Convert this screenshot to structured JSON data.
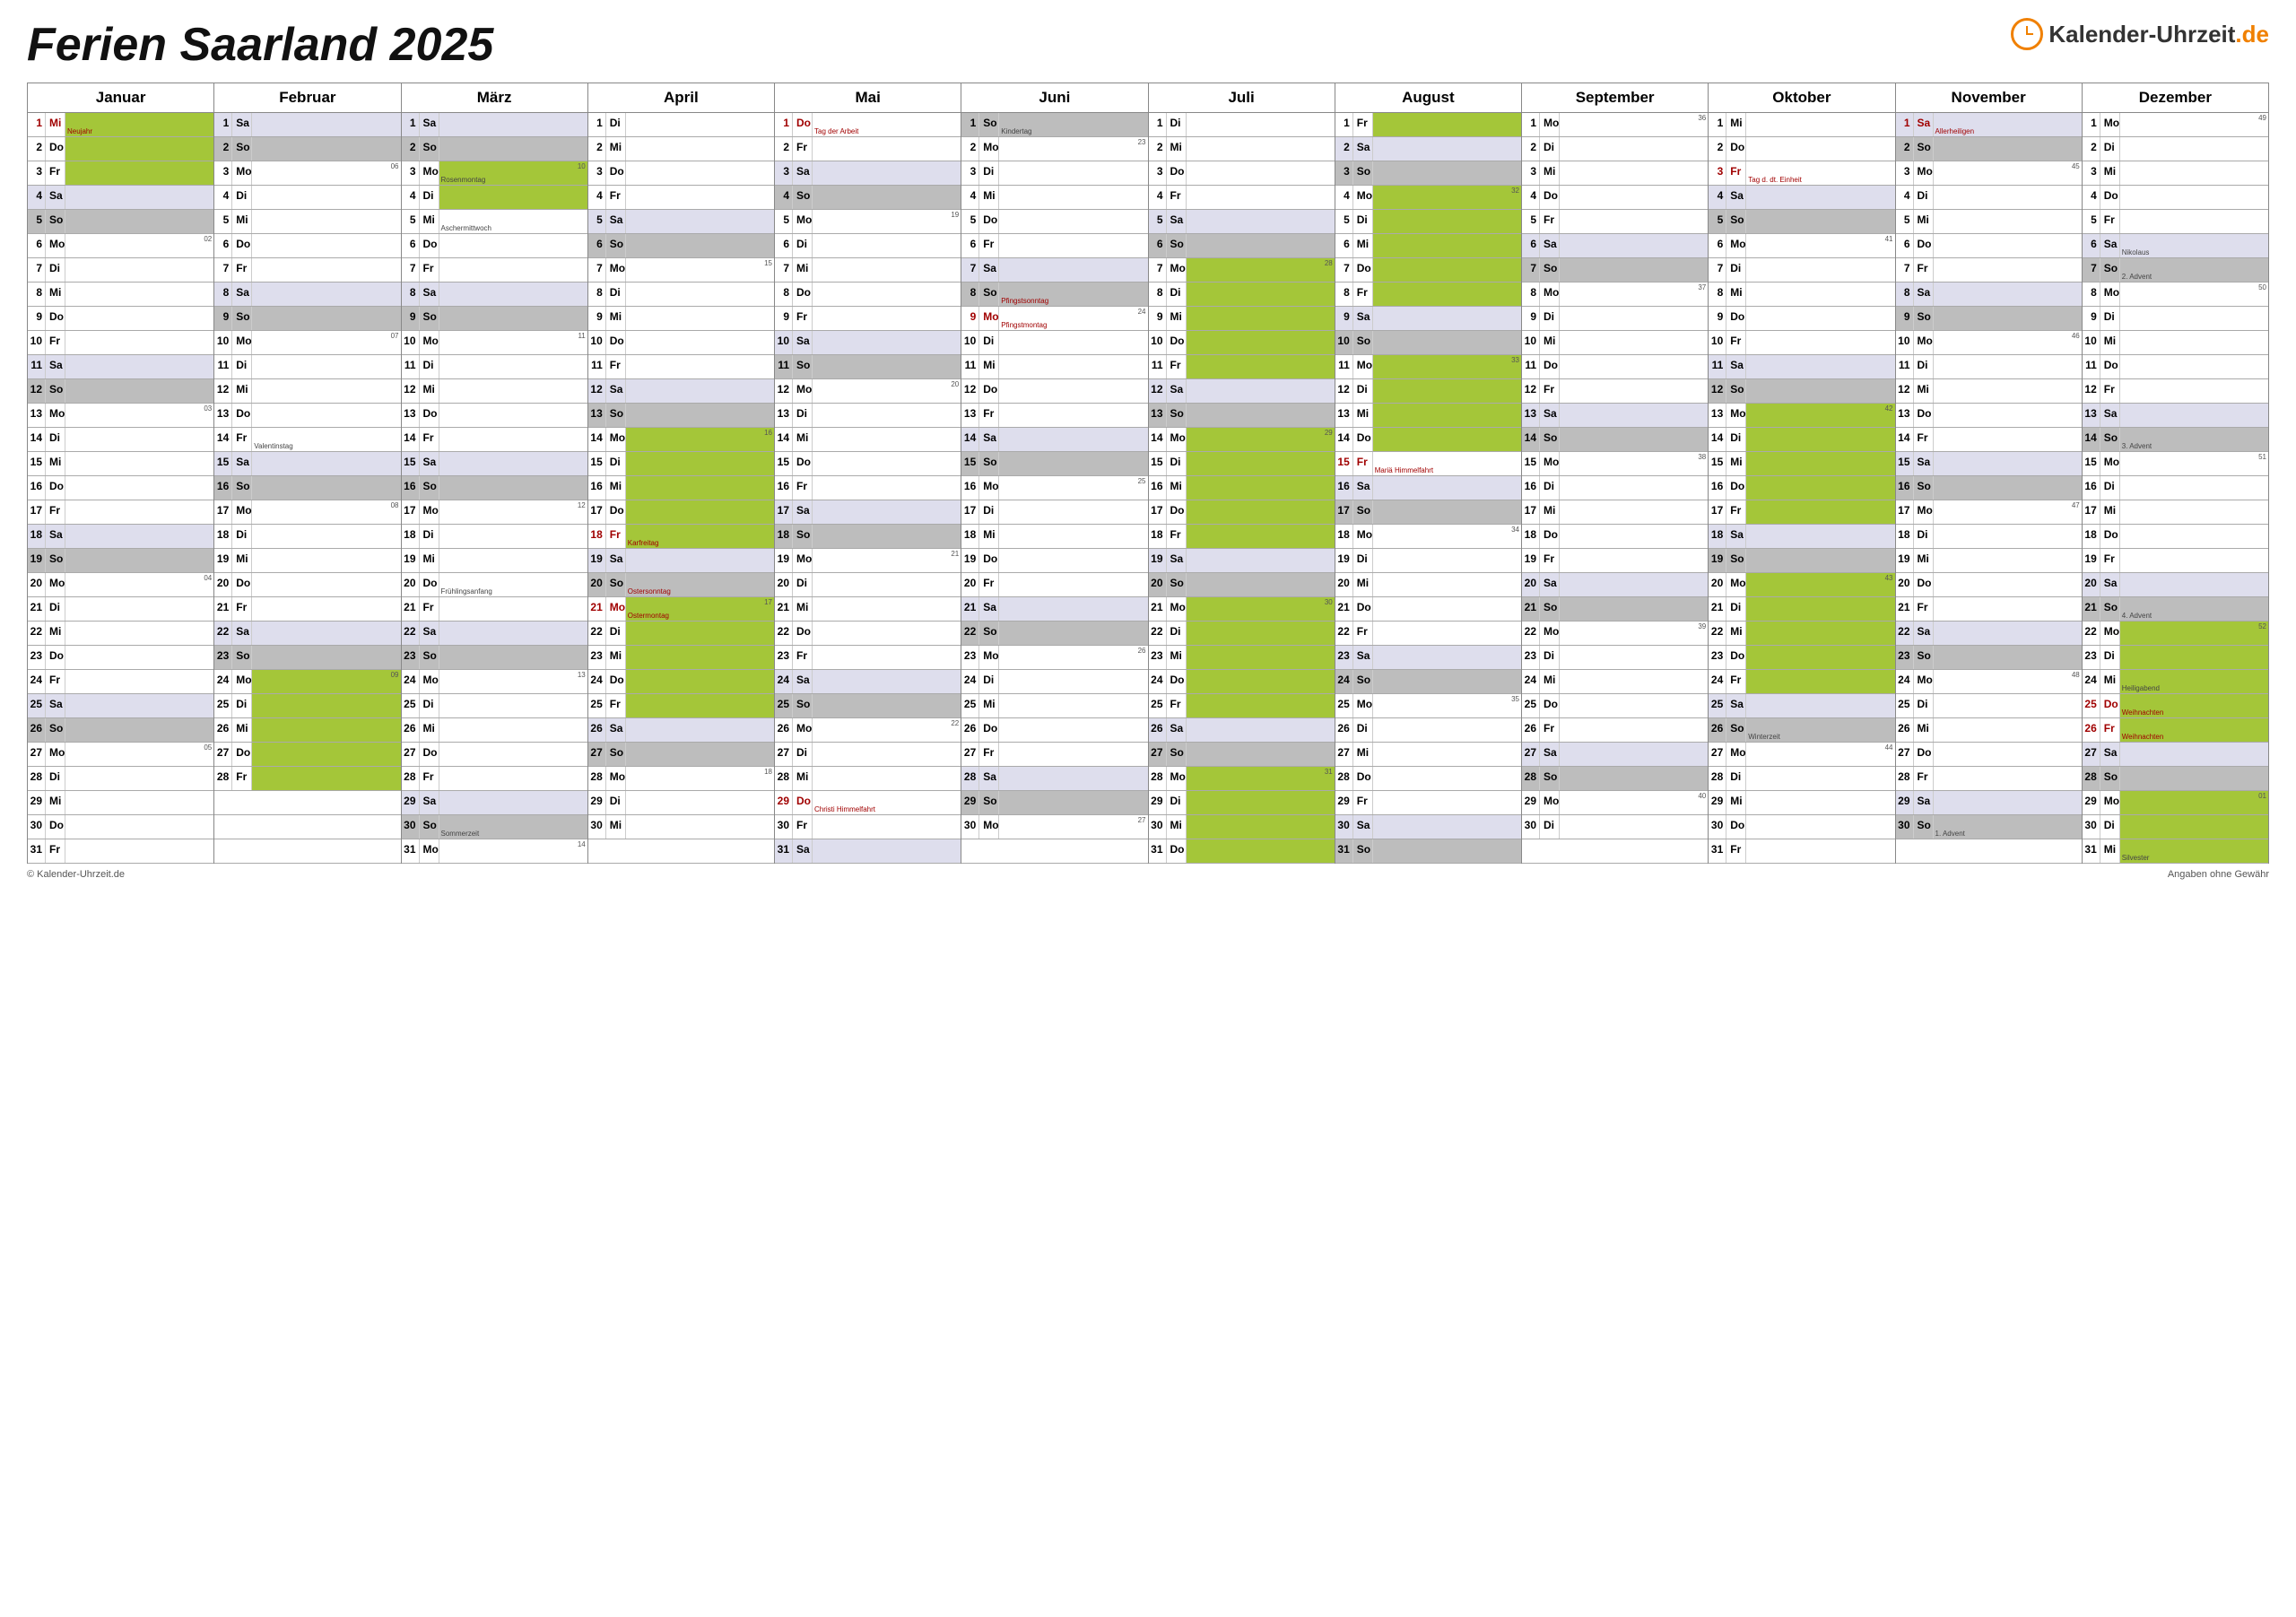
{
  "title": "Ferien Saarland 2025",
  "logo_text_a": "Kalender-Uhrzeit",
  "logo_text_b": ".de",
  "footer_left": "© Kalender-Uhrzeit.de",
  "footer_right": "Angaben ohne Gewähr",
  "colors": {
    "vacation": "#a4c639",
    "sunday": "#bdbdbd",
    "saturday": "#dedeed",
    "holiday_text": "#a00000",
    "border": "#888888"
  },
  "months": [
    "Januar",
    "Februar",
    "März",
    "April",
    "Mai",
    "Juni",
    "Juli",
    "August",
    "September",
    "Oktober",
    "November",
    "Dezember"
  ],
  "month_lengths": [
    31,
    28,
    31,
    30,
    31,
    30,
    31,
    31,
    30,
    31,
    30,
    31
  ],
  "first_weekday": [
    2,
    5,
    5,
    1,
    3,
    6,
    1,
    4,
    0,
    2,
    5,
    0
  ],
  "wd_labels": [
    "Mo",
    "Di",
    "Mi",
    "Do",
    "Fr",
    "Sa",
    "So"
  ],
  "vacations": {
    "1": [
      [
        1,
        3
      ]
    ],
    "2": [
      [
        24,
        28
      ]
    ],
    "3": [
      [
        3,
        4
      ]
    ],
    "4": [
      [
        14,
        25
      ]
    ],
    "6": [],
    "7": [
      [
        7,
        31
      ]
    ],
    "8": [
      [
        1,
        14
      ]
    ],
    "10": [
      [
        13,
        24
      ]
    ],
    "12": [
      [
        22,
        31
      ]
    ]
  },
  "holidays": {
    "1": {
      "1": "Neujahr"
    },
    "3": {
      "3": "Rosenmontag",
      "5": "Aschermittwoch",
      "20": "Frühlingsanfang",
      "30": "Sommerzeit"
    },
    "4": {
      "18": "Karfreitag",
      "20": "Ostersonntag",
      "21": "Ostermontag"
    },
    "5": {
      "1": "Tag der Arbeit",
      "29": "Christi Himmelfahrt"
    },
    "6": {
      "1": "Kindertag",
      "8": "Pfingstsonntag",
      "9": "Pfingstmontag"
    },
    "8": {
      "15": "Mariä Himmelfahrt"
    },
    "10": {
      "3": "Tag d. dt. Einheit",
      "26": "Winterzeit"
    },
    "11": {
      "1": "Allerheiligen",
      "30": "1. Advent"
    },
    "12": {
      "6": "Nikolaus",
      "7": "2. Advent",
      "14": "3. Advent",
      "21": "4. Advent",
      "24": "Heiligabend",
      "25": "Weihnachten",
      "26": "Weihnachten",
      "31": "Silvester"
    }
  },
  "public_holidays": {
    "1": [
      1
    ],
    "4": [
      18,
      21
    ],
    "5": [
      1,
      29
    ],
    "6": [
      9
    ],
    "8": [
      15
    ],
    "10": [
      3
    ],
    "11": [
      1
    ],
    "12": [
      25,
      26
    ]
  },
  "dark_notes": {
    "2": [
      14
    ],
    "3": [
      3,
      5,
      20,
      30
    ],
    "6": [
      1
    ],
    "10": [
      26
    ],
    "11": [
      30
    ],
    "12": [
      6,
      7,
      14,
      21,
      24,
      31
    ]
  },
  "notes_feb": {
    "14": "Valentinstag"
  },
  "week_numbers": {
    "1": {
      "6": "02",
      "13": "03",
      "20": "04",
      "27": "05"
    },
    "2": {
      "3": "06",
      "10": "07",
      "17": "08",
      "24": "09"
    },
    "3": {
      "3": "10",
      "10": "11",
      "17": "12",
      "24": "13",
      "31": "14"
    },
    "4": {
      "7": "15",
      "14": "16",
      "21": "17",
      "28": "18"
    },
    "5": {
      "5": "19",
      "12": "20",
      "19": "21",
      "26": "22"
    },
    "6": {
      "2": "23",
      "9": "24",
      "16": "25",
      "23": "26",
      "30": "27"
    },
    "7": {
      "7": "28",
      "14": "29",
      "21": "30",
      "28": "31"
    },
    "8": {
      "4": "32",
      "11": "33",
      "18": "34",
      "25": "35"
    },
    "9": {
      "1": "36",
      "8": "37",
      "15": "38",
      "22": "39",
      "29": "40"
    },
    "10": {
      "6": "41",
      "13": "42",
      "20": "43",
      "27": "44"
    },
    "11": {
      "3": "45",
      "10": "46",
      "17": "47",
      "24": "48"
    },
    "12": {
      "1": "49",
      "8": "50",
      "15": "51",
      "22": "52",
      "29": "01"
    }
  }
}
